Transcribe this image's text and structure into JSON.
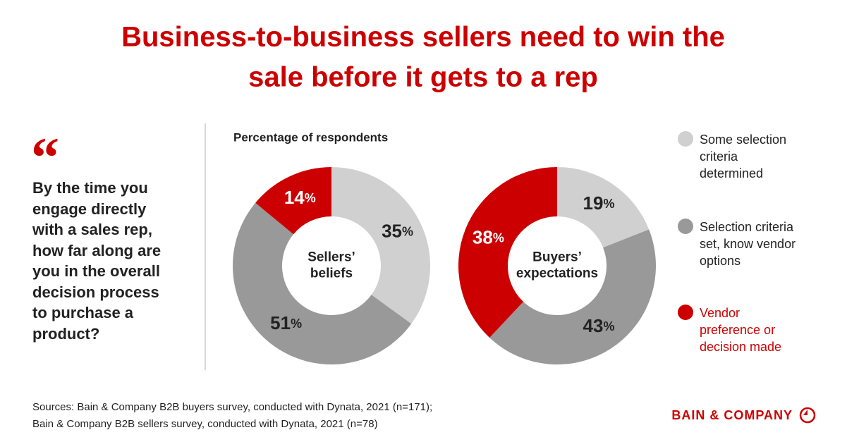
{
  "title": [
    "Business-to-business sellers need to win the",
    "sale before it gets to a rep"
  ],
  "quote_mark": "“",
  "question": "By the time you engage directly with a sales rep, how far along are you in the overall decision process to purchase a product?",
  "subtitle": "Percentage of respondents",
  "sources": [
    "Sources: Bain & Company B2B buyers survey, conducted with Dynata, 2021 (n=171);",
    "Bain & Company B2B sellers survey, conducted with Dynata, 2021 (n=78)"
  ],
  "logo": "BAIN & COMPANY",
  "chart_data": [
    {
      "type": "pie",
      "donut": true,
      "center_label": [
        "Sellers’",
        "beliefs"
      ],
      "categories": [
        "Some selection criteria determined",
        "Selection criteria set, know vendor options",
        "Vendor preference or decision made"
      ],
      "colors": [
        "#d0d0d0",
        "#999999",
        "#cc0000"
      ],
      "values": [
        35,
        51,
        14
      ],
      "value_labels": [
        "35%",
        "51%",
        "14%"
      ]
    },
    {
      "type": "pie",
      "donut": true,
      "center_label": [
        "Buyers’",
        "expectations"
      ],
      "categories": [
        "Some selection criteria determined",
        "Selection criteria set, know vendor options",
        "Vendor preference or decision made"
      ],
      "colors": [
        "#d0d0d0",
        "#999999",
        "#cc0000"
      ],
      "values": [
        19,
        43,
        38
      ],
      "value_labels": [
        "19%",
        "43%",
        "38%"
      ]
    }
  ]
}
